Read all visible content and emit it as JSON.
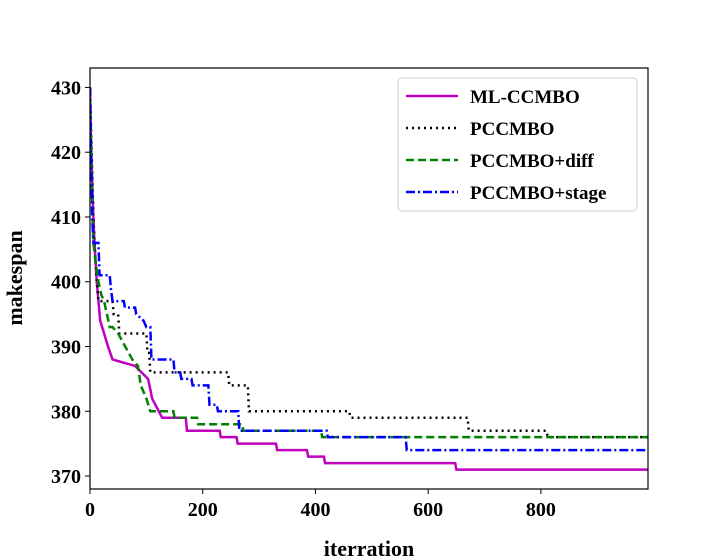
{
  "chart_data": {
    "type": "line",
    "title": "",
    "xlabel": "iterration",
    "ylabel": "makespan",
    "xlim": [
      0,
      990
    ],
    "ylim": [
      368,
      433
    ],
    "xticks": [
      0,
      200,
      400,
      600,
      800
    ],
    "yticks": [
      370,
      380,
      390,
      400,
      410,
      420,
      430
    ],
    "grid": false,
    "legend_position": "top-right",
    "series": [
      {
        "name": "ML-CCMBO",
        "color": "#bf00bf",
        "dash": "solid",
        "points": [
          [
            0,
            430
          ],
          [
            2,
            421
          ],
          [
            4,
            415
          ],
          [
            6,
            410
          ],
          [
            8,
            406
          ],
          [
            10,
            403
          ],
          [
            12,
            400
          ],
          [
            15,
            397
          ],
          [
            18,
            394
          ],
          [
            25,
            392
          ],
          [
            32,
            390
          ],
          [
            40,
            388
          ],
          [
            80,
            387
          ],
          [
            103,
            385
          ],
          [
            108,
            383
          ],
          [
            110,
            382
          ],
          [
            128,
            379
          ],
          [
            170,
            379
          ],
          [
            172,
            377
          ],
          [
            230,
            377
          ],
          [
            232,
            376
          ],
          [
            260,
            376
          ],
          [
            262,
            375
          ],
          [
            330,
            375
          ],
          [
            332,
            374
          ],
          [
            385,
            374
          ],
          [
            387,
            373
          ],
          [
            415,
            373
          ],
          [
            417,
            372
          ],
          [
            648,
            372
          ],
          [
            650,
            371
          ],
          [
            990,
            371
          ]
        ]
      },
      {
        "name": "PCCMBO",
        "color": "#000000",
        "dash": "dotted",
        "points": [
          [
            0,
            430
          ],
          [
            3,
            420
          ],
          [
            6,
            410
          ],
          [
            9,
            404
          ],
          [
            12,
            400
          ],
          [
            15,
            397
          ],
          [
            40,
            397
          ],
          [
            42,
            395
          ],
          [
            50,
            395
          ],
          [
            52,
            392
          ],
          [
            100,
            392
          ],
          [
            102,
            389
          ],
          [
            105,
            389
          ],
          [
            107,
            386
          ],
          [
            245,
            386
          ],
          [
            247,
            384
          ],
          [
            280,
            384
          ],
          [
            282,
            380
          ],
          [
            460,
            380
          ],
          [
            462,
            379
          ],
          [
            670,
            379
          ],
          [
            672,
            377
          ],
          [
            810,
            377
          ],
          [
            812,
            376
          ],
          [
            990,
            376
          ]
        ]
      },
      {
        "name": "PCCMBO+diff",
        "color": "#008000",
        "dash": "dashed",
        "points": [
          [
            0,
            430
          ],
          [
            2,
            420
          ],
          [
            4,
            412
          ],
          [
            6,
            406
          ],
          [
            10,
            403
          ],
          [
            15,
            400
          ],
          [
            20,
            398
          ],
          [
            25,
            397
          ],
          [
            30,
            395
          ],
          [
            35,
            393
          ],
          [
            40,
            393
          ],
          [
            50,
            392
          ],
          [
            75,
            388
          ],
          [
            85,
            387
          ],
          [
            90,
            384
          ],
          [
            100,
            382
          ],
          [
            107,
            380
          ],
          [
            148,
            380
          ],
          [
            150,
            379
          ],
          [
            190,
            379
          ],
          [
            192,
            378
          ],
          [
            270,
            378
          ],
          [
            272,
            377
          ],
          [
            410,
            377
          ],
          [
            412,
            376
          ],
          [
            990,
            376
          ]
        ]
      },
      {
        "name": "PCCMBO+stage",
        "color": "#0000ff",
        "dash": "dashdot",
        "points": [
          [
            0,
            430
          ],
          [
            2,
            419
          ],
          [
            4,
            410
          ],
          [
            6,
            406
          ],
          [
            15,
            406
          ],
          [
            17,
            401
          ],
          [
            35,
            401
          ],
          [
            37,
            399
          ],
          [
            40,
            397
          ],
          [
            60,
            397
          ],
          [
            62,
            396
          ],
          [
            80,
            396
          ],
          [
            82,
            395
          ],
          [
            95,
            394
          ],
          [
            100,
            393
          ],
          [
            107,
            393
          ],
          [
            109,
            388
          ],
          [
            148,
            388
          ],
          [
            150,
            386
          ],
          [
            160,
            386
          ],
          [
            162,
            385
          ],
          [
            180,
            385
          ],
          [
            182,
            384
          ],
          [
            210,
            384
          ],
          [
            212,
            381
          ],
          [
            225,
            381
          ],
          [
            227,
            380
          ],
          [
            263,
            380
          ],
          [
            265,
            377
          ],
          [
            420,
            377
          ],
          [
            422,
            376
          ],
          [
            560,
            376
          ],
          [
            562,
            374
          ],
          [
            990,
            374
          ]
        ]
      }
    ]
  }
}
